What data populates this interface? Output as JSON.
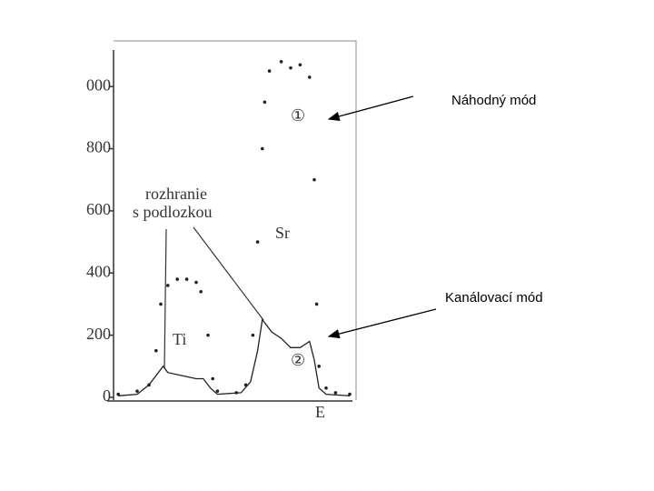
{
  "chart_data": {
    "type": "line",
    "x_label": "E",
    "xlim": [
      0,
      100
    ],
    "ylim": [
      0,
      1100
    ],
    "yticks": [
      0,
      200,
      400,
      600,
      800,
      {
        "value": 1000,
        "label": "000"
      }
    ],
    "annotations": [
      "rozhranie",
      "s podlozkou",
      "Ti",
      "Sr",
      "①",
      "②"
    ],
    "series": [
      {
        "name": "Náhodný mód",
        "color": "#222222",
        "style": "dotted",
        "x": [
          2,
          10,
          15,
          18,
          20,
          23,
          27,
          31,
          35,
          37,
          40,
          42,
          44,
          52,
          56,
          59,
          61,
          63,
          64,
          66,
          71,
          75,
          79,
          83,
          85,
          86,
          87,
          90,
          94,
          100
        ],
        "values": [
          10,
          20,
          40,
          150,
          300,
          360,
          380,
          380,
          370,
          340,
          200,
          60,
          20,
          15,
          40,
          200,
          500,
          800,
          950,
          1050,
          1080,
          1060,
          1070,
          1030,
          700,
          300,
          100,
          30,
          15,
          10
        ]
      },
      {
        "name": "Kanálovací mód",
        "color": "#222222",
        "style": "solid",
        "x": [
          2,
          10,
          15,
          19,
          21,
          23,
          29,
          35,
          38,
          41,
          44,
          54,
          58,
          61,
          63,
          65,
          67,
          71,
          75,
          79,
          83,
          85,
          87,
          90,
          100
        ],
        "values": [
          5,
          10,
          40,
          80,
          100,
          80,
          70,
          60,
          60,
          30,
          10,
          15,
          50,
          150,
          250,
          230,
          210,
          190,
          160,
          160,
          180,
          120,
          30,
          10,
          5
        ]
      }
    ]
  }
}
